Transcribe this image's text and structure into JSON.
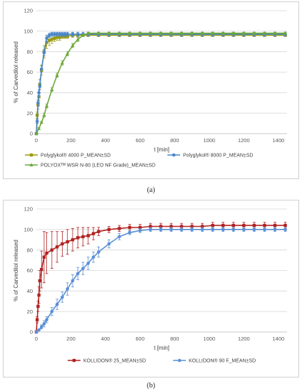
{
  "chart_data": [
    {
      "id": "a",
      "type": "line",
      "panel_label": "(a)",
      "xlabel": "t [min]",
      "ylabel": "% of Carvedilol released",
      "xlim": [
        0,
        1450
      ],
      "ylim": [
        0,
        120
      ],
      "xticks": [
        0,
        200,
        400,
        600,
        800,
        1000,
        1200,
        1400
      ],
      "yticks": [
        0,
        20,
        40,
        60,
        80,
        100,
        120
      ],
      "grid": "horizontal",
      "legend_position": "bottom",
      "series": [
        {
          "name": "Polyglykol® 4000 P_MEAN±SD",
          "color": "#9b9b0f",
          "marker": "square",
          "x": [
            0,
            5,
            10,
            15,
            20,
            30,
            45,
            60,
            75,
            90,
            105,
            120,
            135,
            150,
            165,
            180,
            210,
            240,
            270,
            300,
            360,
            420,
            480,
            540,
            600,
            660,
            720,
            780,
            840,
            900,
            960,
            1020,
            1080,
            1140,
            1200,
            1260,
            1320,
            1380,
            1440
          ],
          "y": [
            0,
            18,
            28,
            36,
            48,
            62,
            80,
            89,
            91,
            92,
            93,
            94,
            94,
            95,
            95,
            95,
            96,
            96,
            96,
            96,
            96,
            96,
            96,
            96,
            96,
            96,
            96,
            96,
            96,
            96,
            96,
            96,
            96,
            96,
            96,
            96,
            96,
            96,
            96
          ],
          "sd": [
            0,
            3,
            4,
            4,
            5,
            5,
            6,
            6,
            5,
            4,
            3,
            3,
            3,
            2,
            2,
            2,
            2,
            1,
            1,
            1,
            1,
            1,
            1,
            1,
            1,
            1,
            1,
            1,
            1,
            1,
            1,
            1,
            1,
            1,
            1,
            1,
            1,
            1,
            1
          ]
        },
        {
          "name": "Polyglykol® 8000 P_MEAN±SD",
          "color": "#4a86c8",
          "marker": "circle",
          "x": [
            0,
            5,
            10,
            15,
            20,
            30,
            45,
            60,
            75,
            90,
            105,
            120,
            135,
            150,
            165,
            180,
            210,
            240,
            270,
            300,
            360,
            420,
            480,
            540,
            600,
            660,
            720,
            780,
            840,
            900,
            960,
            1020,
            1080,
            1140,
            1200,
            1260,
            1320,
            1380,
            1440
          ],
          "y": [
            0,
            12,
            30,
            40,
            46,
            63,
            79,
            93,
            96,
            97,
            97,
            97,
            97,
            97,
            97,
            97,
            97,
            97,
            97,
            97,
            97,
            97,
            97,
            97,
            97,
            97,
            97,
            97,
            97,
            97,
            97,
            97,
            97,
            97,
            97,
            97,
            97,
            97,
            97
          ],
          "sd": [
            0,
            2,
            3,
            3,
            3,
            3,
            3,
            3,
            2,
            2,
            2,
            2,
            2,
            2,
            2,
            2,
            2,
            2,
            2,
            2,
            2,
            2,
            2,
            2,
            2,
            2,
            2,
            2,
            2,
            2,
            2,
            2,
            2,
            2,
            2,
            2,
            2,
            2,
            2
          ]
        },
        {
          "name": "POLYOXᵀᴹ WSR N-80 (LEO NF Grade)_MEAN±SD",
          "color": "#6da83a",
          "marker": "triangle",
          "x": [
            0,
            15,
            30,
            45,
            60,
            90,
            120,
            150,
            180,
            210,
            240,
            270,
            300,
            360,
            420,
            480,
            540,
            600,
            660,
            720,
            780,
            840,
            900,
            960,
            1020,
            1080,
            1140,
            1200,
            1260,
            1320,
            1380,
            1440
          ],
          "y": [
            0,
            5,
            11,
            18,
            27,
            43,
            57,
            69,
            78,
            86,
            92,
            96,
            98,
            98,
            98,
            98,
            98,
            98,
            98,
            98,
            98,
            98,
            98,
            98,
            98,
            98,
            98,
            98,
            98,
            98,
            98,
            98
          ],
          "sd": [
            0,
            1,
            1,
            2,
            2,
            2,
            2,
            2,
            2,
            2,
            2,
            1,
            1,
            1,
            1,
            1,
            1,
            1,
            1,
            1,
            1,
            1,
            1,
            1,
            1,
            1,
            1,
            1,
            1,
            1,
            1,
            1
          ]
        }
      ]
    },
    {
      "id": "b",
      "type": "line",
      "panel_label": "(b)",
      "xlabel": "t [min]",
      "ylabel": "% of Carvedilol released",
      "xlim": [
        0,
        1450
      ],
      "ylim": [
        0,
        120
      ],
      "xticks": [
        0,
        200,
        400,
        600,
        800,
        1000,
        1200,
        1400
      ],
      "yticks": [
        0,
        20,
        40,
        60,
        80,
        100,
        120
      ],
      "grid": "horizontal",
      "legend_position": "bottom",
      "series": [
        {
          "name": "KOLLIDON® 25_MEAN±SD",
          "color": "#b22222",
          "marker": "square",
          "x": [
            0,
            5,
            10,
            15,
            20,
            30,
            45,
            60,
            90,
            120,
            150,
            180,
            210,
            240,
            270,
            300,
            330,
            360,
            420,
            480,
            540,
            600,
            660,
            720,
            780,
            840,
            900,
            960,
            1020,
            1080,
            1140,
            1200,
            1260,
            1320,
            1380,
            1440
          ],
          "y": [
            0,
            12,
            25,
            36,
            50,
            61,
            73,
            77,
            80,
            83,
            86,
            88,
            90,
            92,
            93,
            94,
            96,
            98,
            100,
            101,
            102,
            102,
            103,
            103,
            103,
            103,
            103,
            103,
            104,
            104,
            104,
            104,
            104,
            104,
            104,
            104
          ],
          "sd": [
            0,
            3,
            5,
            8,
            10,
            18,
            25,
            20,
            18,
            15,
            12,
            12,
            11,
            10,
            9,
            8,
            6,
            4,
            3,
            3,
            3,
            3,
            3,
            3,
            3,
            3,
            3,
            3,
            3,
            3,
            3,
            3,
            3,
            3,
            3,
            3
          ]
        },
        {
          "name": "KOLLIDON® 90 F_MEAN±SD",
          "color": "#5b8fd6",
          "marker": "circle",
          "x": [
            0,
            15,
            30,
            45,
            60,
            90,
            120,
            150,
            180,
            210,
            240,
            270,
            300,
            330,
            360,
            420,
            480,
            540,
            600,
            660,
            720,
            780,
            840,
            900,
            960,
            1020,
            1080,
            1140,
            1200,
            1260,
            1320,
            1380,
            1440
          ],
          "y": [
            0,
            2,
            5,
            8,
            12,
            20,
            27,
            34,
            42,
            50,
            57,
            62,
            67,
            73,
            78,
            86,
            93,
            97,
            99,
            100,
            100,
            100,
            100,
            100,
            100,
            100,
            100,
            100,
            100,
            100,
            100,
            100,
            100
          ],
          "sd": [
            0,
            1,
            2,
            3,
            3,
            4,
            5,
            5,
            6,
            6,
            6,
            6,
            6,
            5,
            5,
            4,
            3,
            2,
            2,
            2,
            2,
            2,
            2,
            2,
            2,
            2,
            2,
            2,
            2,
            2,
            2,
            2,
            2
          ]
        }
      ]
    }
  ]
}
